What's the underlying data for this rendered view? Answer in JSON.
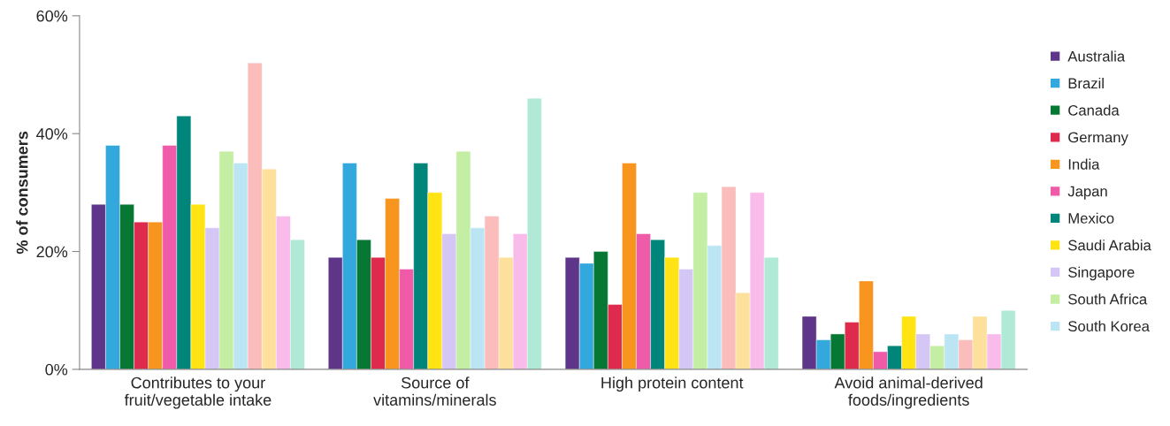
{
  "chart_data": {
    "type": "bar",
    "ylabel": "% of consumers",
    "categories": [
      "Contributes to your\nfruit/vegetable intake",
      "Source of\nvitamins/minerals",
      "High protein content",
      "Avoid animal-derived\nfoods/ingredients"
    ],
    "ylim": [
      0,
      60
    ],
    "yticks": [
      {
        "value": 0,
        "label": "0%"
      },
      {
        "value": 20,
        "label": "20%"
      },
      {
        "value": 40,
        "label": "40%"
      },
      {
        "value": 60,
        "label": "60%"
      }
    ],
    "grid": false,
    "legend": "right",
    "series": [
      {
        "name": "Australia",
        "color": "#5e3588",
        "values": [
          28,
          19,
          19,
          9
        ]
      },
      {
        "name": "Brazil",
        "color": "#32a8dd",
        "values": [
          38,
          35,
          18,
          5
        ]
      },
      {
        "name": "Canada",
        "color": "#067834",
        "values": [
          28,
          22,
          20,
          6
        ]
      },
      {
        "name": "Germany",
        "color": "#de2a4d",
        "values": [
          25,
          19,
          11,
          8
        ]
      },
      {
        "name": "India",
        "color": "#f7951f",
        "values": [
          25,
          29,
          35,
          15
        ]
      },
      {
        "name": "Japan",
        "color": "#ef5ba8",
        "values": [
          38,
          17,
          23,
          3
        ]
      },
      {
        "name": "Mexico",
        "color": "#00857a",
        "values": [
          43,
          35,
          22,
          4
        ]
      },
      {
        "name": "Saudi Arabia",
        "color": "#ffe312",
        "values": [
          28,
          30,
          19,
          9
        ]
      },
      {
        "name": "Singapore",
        "color": "#d4c7f5",
        "values": [
          24,
          23,
          17,
          6
        ]
      },
      {
        "name": "South Africa",
        "color": "#c3eea3",
        "values": [
          37,
          37,
          30,
          4
        ]
      },
      {
        "name": "South Korea",
        "color": "#bce5f4",
        "values": [
          35,
          24,
          21,
          6
        ]
      },
      {
        "color": "#fbbcbc",
        "values": [
          52,
          26,
          31,
          5
        ]
      },
      {
        "color": "#fce09b",
        "values": [
          34,
          19,
          13,
          9
        ]
      },
      {
        "color": "#f9bbea",
        "values": [
          26,
          23,
          30,
          6
        ]
      },
      {
        "color": "#b0ead6",
        "values": [
          22,
          46,
          19,
          10
        ]
      }
    ]
  }
}
